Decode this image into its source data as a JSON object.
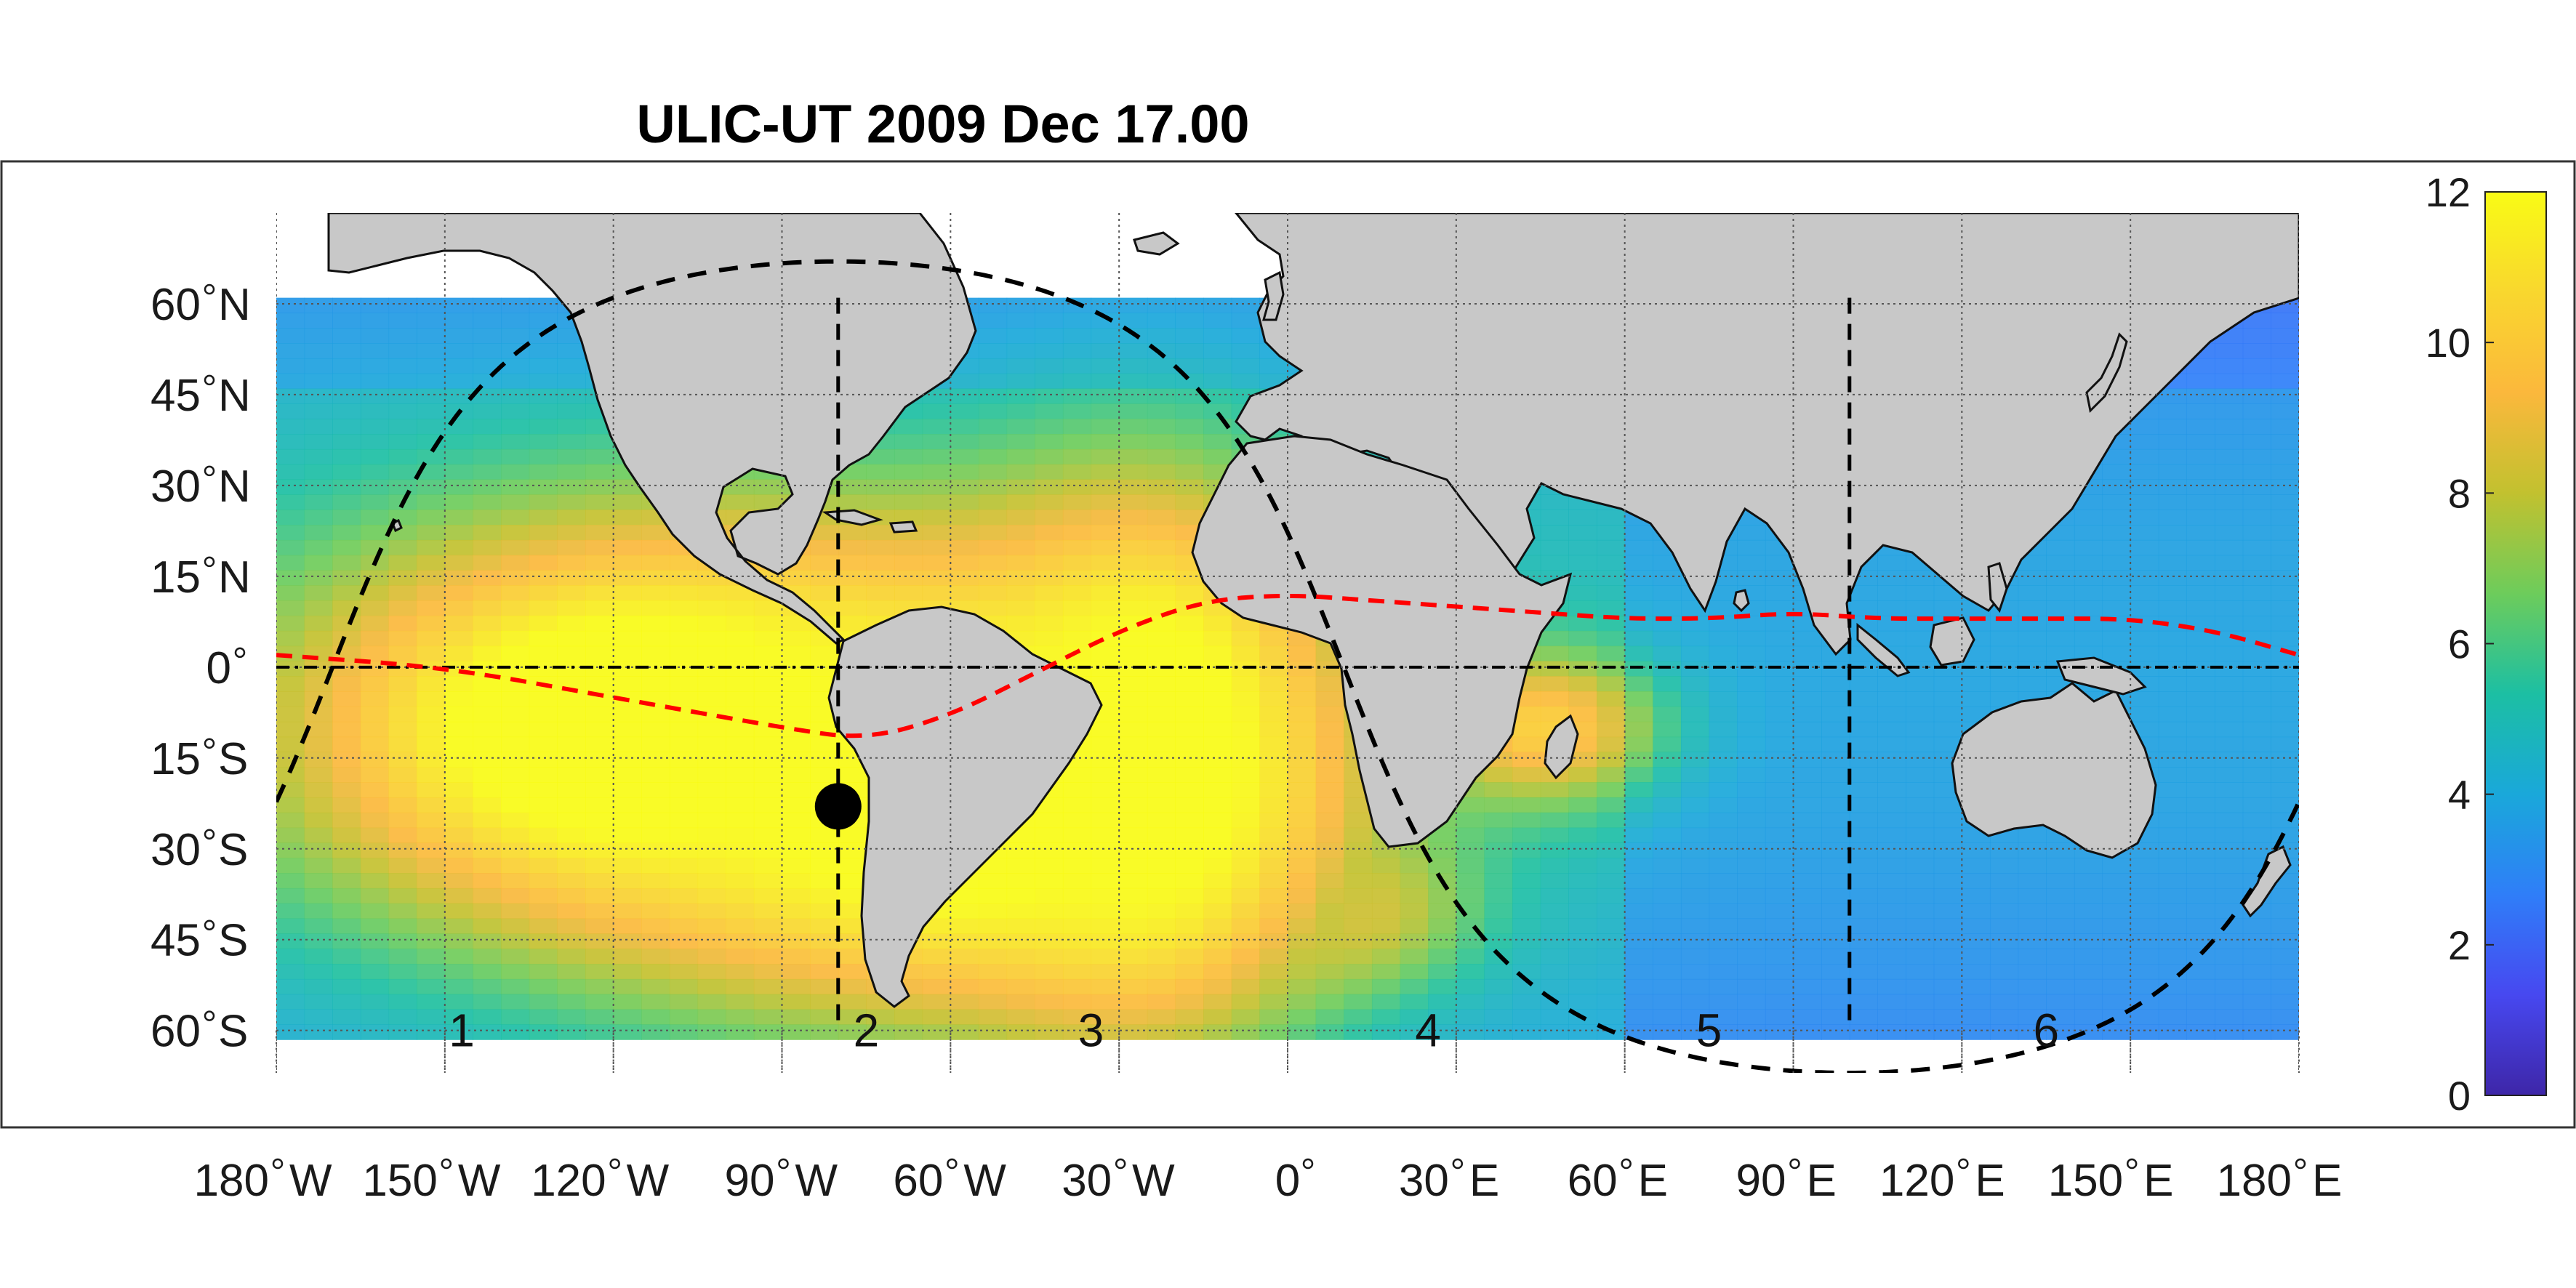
{
  "title": "ULIC-UT 2009 Dec 17.00",
  "x_ticks": [
    {
      "lon": -180,
      "num": "180",
      "hem": "W"
    },
    {
      "lon": -150,
      "num": "150",
      "hem": "W"
    },
    {
      "lon": -120,
      "num": "120",
      "hem": "W"
    },
    {
      "lon": -90,
      "num": "90",
      "hem": "W"
    },
    {
      "lon": -60,
      "num": "60",
      "hem": "W"
    },
    {
      "lon": -30,
      "num": "30",
      "hem": "W"
    },
    {
      "lon": 0,
      "num": "0",
      "hem": ""
    },
    {
      "lon": 30,
      "num": "30",
      "hem": "E"
    },
    {
      "lon": 60,
      "num": "60",
      "hem": "E"
    },
    {
      "lon": 90,
      "num": "90",
      "hem": "E"
    },
    {
      "lon": 120,
      "num": "120",
      "hem": "E"
    },
    {
      "lon": 150,
      "num": "150",
      "hem": "E"
    },
    {
      "lon": 180,
      "num": "180",
      "hem": "E"
    }
  ],
  "y_ticks": [
    {
      "lat": 60,
      "num": "60",
      "hem": "N"
    },
    {
      "lat": 45,
      "num": "45",
      "hem": "N"
    },
    {
      "lat": 30,
      "num": "30",
      "hem": "N"
    },
    {
      "lat": 15,
      "num": "15",
      "hem": "N"
    },
    {
      "lat": 0,
      "num": "0",
      "hem": ""
    },
    {
      "lat": -15,
      "num": "15",
      "hem": "S"
    },
    {
      "lat": -30,
      "num": "30",
      "hem": "S"
    },
    {
      "lat": -45,
      "num": "45",
      "hem": "S"
    },
    {
      "lat": -60,
      "num": "60",
      "hem": "S"
    }
  ],
  "zones": [
    {
      "label": "1",
      "lon": -147
    },
    {
      "label": "2",
      "lon": -75
    },
    {
      "label": "3",
      "lon": -35
    },
    {
      "label": "4",
      "lon": 25
    },
    {
      "label": "5",
      "lon": 75
    },
    {
      "label": "6",
      "lon": 135
    }
  ],
  "colorbar": {
    "min": 0,
    "max": 12,
    "ticks": [
      "0",
      "2",
      "4",
      "6",
      "8",
      "10",
      "12"
    ],
    "colormap": [
      "#3e26a8",
      "#4748f0",
      "#2f7ef8",
      "#1aa8da",
      "#1cbfa3",
      "#6dcc5b",
      "#c2c12f",
      "#fbb83c",
      "#f9d72e",
      "#f9fb15"
    ]
  },
  "data_extent": {
    "lat_min": -60,
    "lat_max": 61
  },
  "subsolar_point": {
    "lon": -80,
    "lat": -23
  },
  "meridian_lines_lon": [
    -80,
    100
  ],
  "lines": {
    "equator_color": "#000000",
    "terminator_color": "#000000",
    "dip_equator_color": "#ff0000"
  },
  "chart_data": {
    "type": "heatmap",
    "projection": "equirectangular",
    "title": "ULIC-UT 2009 Dec 17.00",
    "xlim": [
      -180,
      180
    ],
    "ylim": [
      -67,
      75
    ],
    "value_range": [
      0,
      12
    ],
    "terminator": {
      "subsolar_lon": -80,
      "subsolar_lat": -23
    },
    "dip_equator": [
      [
        -180,
        2
      ],
      [
        -150,
        0
      ],
      [
        -120,
        -5
      ],
      [
        -90,
        -10
      ],
      [
        -75,
        -12
      ],
      [
        -60,
        -8
      ],
      [
        -45,
        -1
      ],
      [
        -30,
        6
      ],
      [
        -15,
        11
      ],
      [
        0,
        12
      ],
      [
        15,
        11
      ],
      [
        30,
        10
      ],
      [
        45,
        9
      ],
      [
        60,
        8
      ],
      [
        75,
        8
      ],
      [
        90,
        9
      ],
      [
        105,
        8
      ],
      [
        120,
        8
      ],
      [
        135,
        8
      ],
      [
        150,
        8
      ],
      [
        165,
        6
      ],
      [
        180,
        2
      ]
    ],
    "hotspots": [
      {
        "lon": -115,
        "lat": -10,
        "value": 12,
        "spread_lon": 60,
        "spread_lat": 32
      },
      {
        "lon": -60,
        "lat": -20,
        "value": 12,
        "spread_lon": 60,
        "spread_lat": 35
      },
      {
        "lon": -25,
        "lat": -15,
        "value": 12,
        "spread_lon": 30,
        "spread_lat": 40
      },
      {
        "lon": 45,
        "lat": -10,
        "value": 9,
        "spread_lon": 20,
        "spread_lat": 12
      },
      {
        "lon": 10,
        "lat": -40,
        "value": 8,
        "spread_lon": 20,
        "spread_lat": 12
      }
    ]
  }
}
